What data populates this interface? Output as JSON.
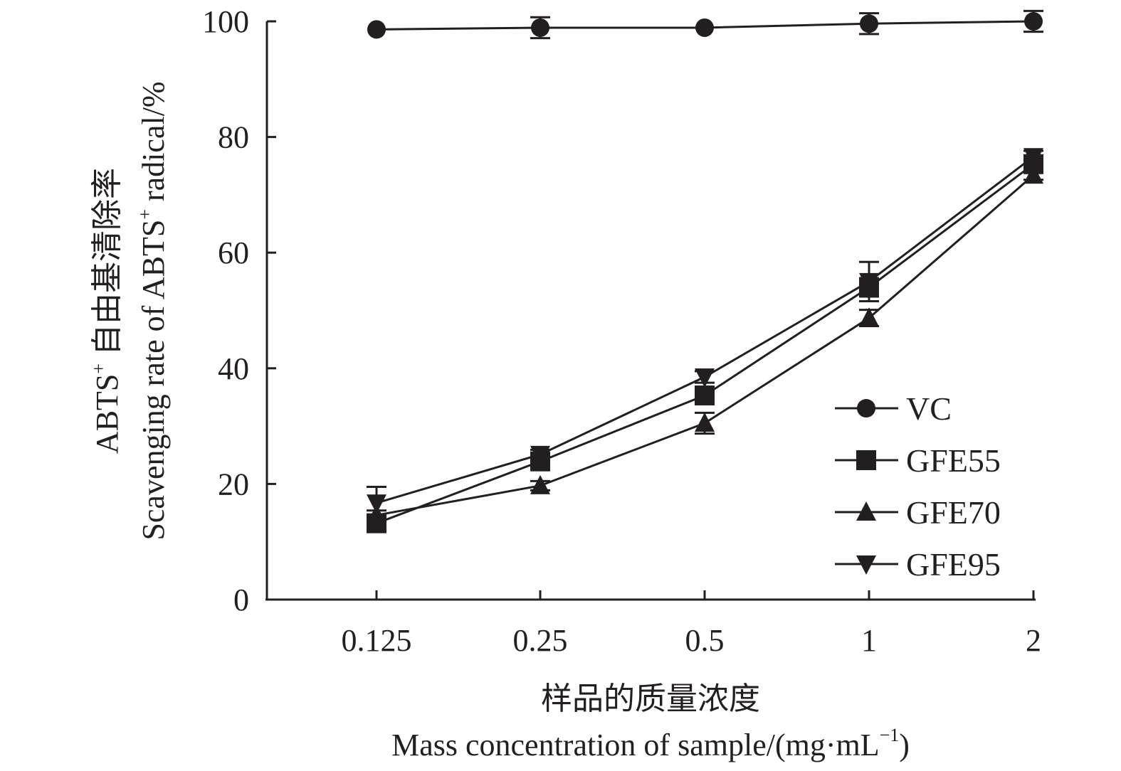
{
  "chart_data": {
    "type": "line",
    "title": "",
    "categories": [
      "0.125",
      "0.25",
      "0.5",
      "1",
      "2"
    ],
    "xlabel_cn": "样品的质量浓度",
    "xlabel_en": "Mass concentration of sample/(mg·mL",
    "xlabel_en_sup": "−1",
    "xlabel_en_tail": ")",
    "ylabel_cn_prefix": "ABTS",
    "ylabel_cn_sup": "+",
    "ylabel_cn": " 自由基清除率",
    "ylabel_en_prefix": "Scavenging rate of ABTS",
    "ylabel_en_sup": "+",
    "ylabel_en_tail": " radical/%",
    "ylim": [
      0,
      100
    ],
    "yticks": [
      0,
      20,
      40,
      60,
      80,
      100
    ],
    "grid": false,
    "legend_position": "bottom-right",
    "series": [
      {
        "name": "VC",
        "marker": "circle",
        "values": [
          98.6,
          98.9,
          98.9,
          99.6,
          100.0
        ],
        "errors": [
          0.0,
          1.8,
          0.0,
          1.8,
          1.8
        ]
      },
      {
        "name": "GFE55",
        "marker": "square",
        "values": [
          13.2,
          23.9,
          35.3,
          54.0,
          75.3
        ],
        "errors": [
          1.0,
          1.2,
          1.2,
          1.6,
          1.2
        ]
      },
      {
        "name": "GFE70",
        "marker": "triangle-up",
        "values": [
          14.6,
          19.7,
          30.5,
          48.7,
          73.4
        ],
        "errors": [
          0.8,
          0.8,
          1.8,
          1.4,
          0.8
        ]
      },
      {
        "name": "GFE95",
        "marker": "triangle-down",
        "values": [
          16.7,
          25.1,
          38.5,
          55.0,
          76.6
        ],
        "errors": [
          2.8,
          0.8,
          1.0,
          3.4,
          1.0
        ]
      }
    ],
    "line_color": "#231f20"
  }
}
